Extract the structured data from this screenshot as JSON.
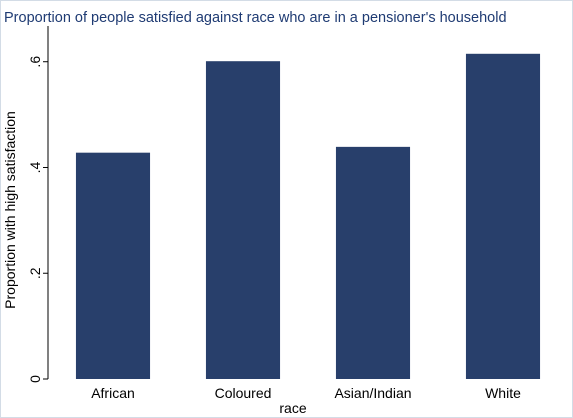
{
  "chart_data": {
    "type": "bar",
    "title": "Proportion of people satisfied against race who are in a pensioner's household",
    "xlabel": "race",
    "ylabel": "Proportion with high satisfaction",
    "categories": [
      "African",
      "Coloured",
      "Asian/Indian",
      "White"
    ],
    "values": [
      0.428,
      0.601,
      0.439,
      0.615
    ],
    "ylim": [
      0,
      0.66
    ],
    "yticks": [
      0,
      0.2,
      0.4,
      0.6
    ],
    "ytick_labels": [
      "0",
      ".2",
      ".4",
      ".6"
    ],
    "grid": false,
    "legend": "none",
    "bar_color": "#283f6b",
    "title_color": "#1f3b73"
  }
}
